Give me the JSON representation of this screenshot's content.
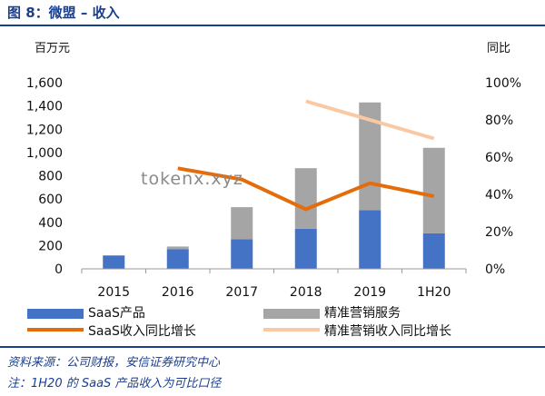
{
  "figure_title": "图 8：微盟 – 收入",
  "source_note": "资料来源：公司财报，安信证券研究中心",
  "footnote": "注：1H20 的 SaaS 产品收入为可比口径",
  "watermark": "tokenx.xyz",
  "colors": {
    "title": "#1b3f8f",
    "saas": "#4472c4",
    "marketing": "#a5a5a5",
    "saas_yoy": "#e46c0a",
    "marketing_yoy": "#f8c9a4"
  },
  "chart_data": {
    "type": "bar",
    "stacked": true,
    "categories": [
      "2015",
      "2016",
      "2017",
      "2018",
      "2019",
      "1H20"
    ],
    "left_axis": {
      "label": "百万元",
      "ylim": [
        0,
        1600
      ],
      "ticks": [
        "0",
        "200",
        "400",
        "600",
        "800",
        "1,000",
        "1,200",
        "1,400",
        "1,600"
      ]
    },
    "right_axis": {
      "label": "同比",
      "ylim": [
        0,
        100
      ],
      "ticks": [
        "0%",
        "20%",
        "40%",
        "60%",
        "80%",
        "100%"
      ]
    },
    "bar_series": [
      {
        "name": "SaaS产品",
        "values": [
          115,
          170,
          255,
          345,
          505,
          305
        ]
      },
      {
        "name": "精准营销服务",
        "values": [
          0,
          22,
          275,
          520,
          925,
          735
        ]
      }
    ],
    "line_series": [
      {
        "name": "SaaS收入同比增长",
        "axis": "right",
        "values": [
          null,
          54,
          48,
          32,
          46,
          39
        ]
      },
      {
        "name": "精准营销收入同比增长",
        "axis": "right",
        "values": [
          null,
          null,
          null,
          90,
          80,
          70
        ]
      }
    ],
    "grid": false,
    "legend": "bottom"
  }
}
